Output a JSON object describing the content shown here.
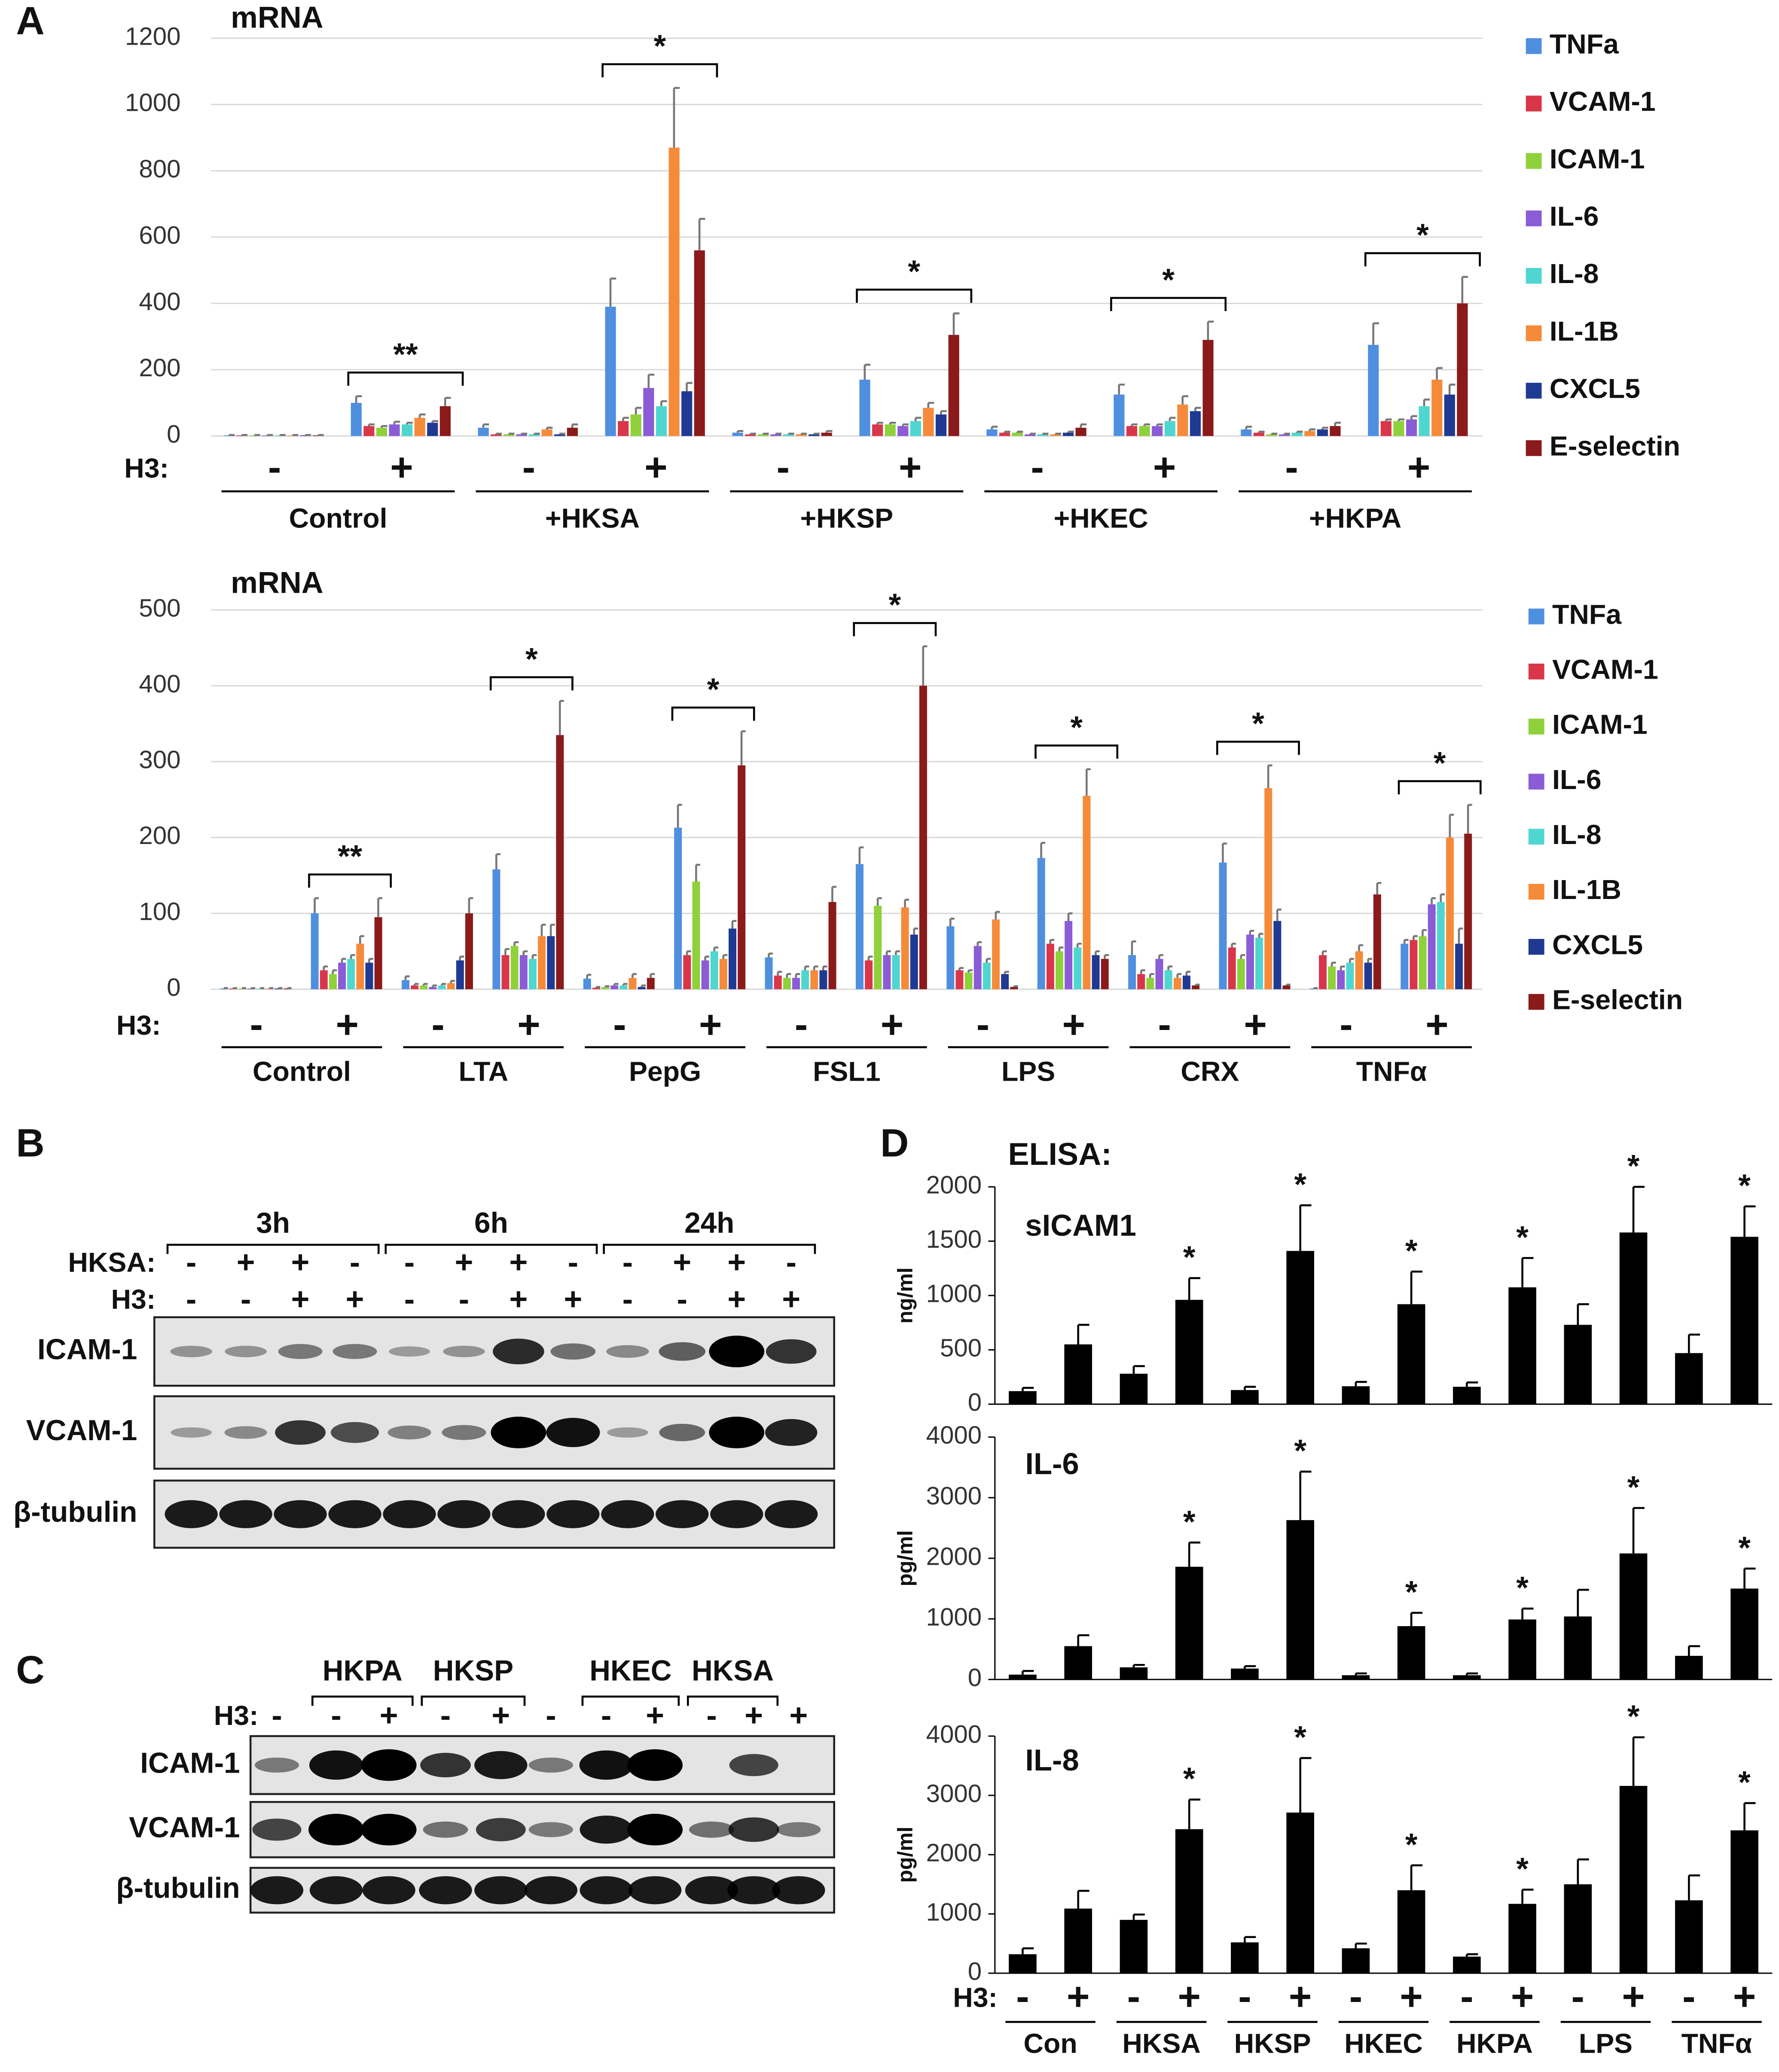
{
  "chart_data": [
    {
      "type": "bar",
      "panel": "A",
      "title": "mRNA",
      "x_label": "H3:",
      "categories": [
        "-",
        "+",
        "-",
        "+",
        "-",
        "+",
        "-",
        "+",
        "-",
        "+"
      ],
      "groups": [
        "Control",
        "+HKSA",
        "+HKSP",
        "+HKEC",
        "+HKPA"
      ],
      "significance": [
        "**",
        "*",
        "*",
        "*",
        "*"
      ],
      "ylim": [
        0,
        1200
      ],
      "yticks": [
        0,
        200,
        400,
        600,
        800,
        1000,
        1200
      ],
      "grid": true,
      "legend": "right",
      "series": [
        {
          "name": "TNFa",
          "color": "#4f8fe0",
          "values": [
            2,
            100,
            25,
            390,
            10,
            170,
            20,
            125,
            20,
            275
          ],
          "errors": [
            1,
            20,
            10,
            85,
            5,
            45,
            8,
            30,
            8,
            65
          ]
        },
        {
          "name": "VCAM-1",
          "color": "#d9364a",
          "values": [
            2,
            30,
            5,
            45,
            5,
            35,
            10,
            30,
            10,
            45
          ],
          "errors": [
            1,
            5,
            2,
            10,
            2,
            5,
            3,
            5,
            3,
            5
          ]
        },
        {
          "name": "ICAM-1",
          "color": "#8fd13a",
          "values": [
            2,
            25,
            5,
            65,
            5,
            35,
            10,
            30,
            5,
            45
          ],
          "errors": [
            1,
            5,
            2,
            20,
            2,
            5,
            3,
            5,
            2,
            5
          ]
        },
        {
          "name": "IL-6",
          "color": "#8b5cd6",
          "values": [
            2,
            35,
            5,
            145,
            5,
            30,
            5,
            30,
            5,
            50
          ],
          "errors": [
            1,
            8,
            2,
            40,
            2,
            5,
            2,
            5,
            2,
            10
          ]
        },
        {
          "name": "IL-8",
          "color": "#4fd6d0",
          "values": [
            2,
            35,
            5,
            90,
            5,
            45,
            5,
            45,
            10,
            90
          ],
          "errors": [
            1,
            5,
            2,
            15,
            2,
            10,
            2,
            10,
            3,
            20
          ]
        },
        {
          "name": "IL-1B",
          "color": "#f58b3a",
          "values": [
            2,
            55,
            20,
            870,
            5,
            85,
            5,
            95,
            15,
            170
          ],
          "errors": [
            1,
            10,
            5,
            180,
            2,
            15,
            2,
            25,
            5,
            35
          ]
        },
        {
          "name": "CXCL5",
          "color": "#1f3a93",
          "values": [
            2,
            40,
            5,
            135,
            5,
            65,
            10,
            75,
            20,
            125
          ],
          "errors": [
            1,
            5,
            2,
            25,
            2,
            10,
            3,
            10,
            5,
            30
          ]
        },
        {
          "name": "E-selectin",
          "color": "#8b1a1a",
          "values": [
            2,
            90,
            25,
            560,
            10,
            305,
            25,
            290,
            30,
            400
          ],
          "errors": [
            1,
            25,
            10,
            95,
            5,
            65,
            10,
            55,
            10,
            80
          ]
        }
      ]
    },
    {
      "type": "bar",
      "title": "mRNA",
      "x_label": "H3:",
      "categories": [
        "-",
        "+",
        "-",
        "+",
        "-",
        "+",
        "-",
        "+",
        "-",
        "+",
        "-",
        "+",
        "-",
        "+"
      ],
      "groups": [
        "Control",
        "LTA",
        "PepG",
        "FSL1",
        "LPS",
        "CRX",
        "TNFα"
      ],
      "significance": [
        "**",
        "*",
        "*",
        "*",
        "*",
        "*",
        "*"
      ],
      "ylim": [
        0,
        500
      ],
      "yticks": [
        0,
        100,
        200,
        300,
        400,
        500
      ],
      "grid": true,
      "legend": "right",
      "series": [
        {
          "name": "TNFa",
          "color": "#4f8fe0",
          "values": [
            1,
            100,
            12,
            158,
            14,
            213,
            42,
            165,
            83,
            173,
            45,
            167,
            1,
            60
          ],
          "errors": [
            0.5,
            20,
            5,
            20,
            5,
            30,
            5,
            22,
            10,
            20,
            18,
            25,
            0.5,
            5
          ]
        },
        {
          "name": "VCAM-1",
          "color": "#d9364a",
          "values": [
            1,
            25,
            5,
            45,
            2,
            45,
            18,
            38,
            25,
            60,
            20,
            55,
            45,
            65
          ],
          "errors": [
            0.5,
            5,
            2,
            8,
            1,
            5,
            5,
            5,
            3,
            5,
            5,
            5,
            5,
            5
          ]
        },
        {
          "name": "ICAM-1",
          "color": "#8fd13a",
          "values": [
            1,
            20,
            5,
            57,
            3,
            142,
            15,
            110,
            22,
            50,
            15,
            40,
            30,
            70
          ],
          "errors": [
            0.5,
            5,
            2,
            5,
            1,
            22,
            5,
            10,
            3,
            5,
            5,
            5,
            5,
            8
          ]
        },
        {
          "name": "IL-6",
          "color": "#8b5cd6",
          "values": [
            1,
            35,
            3,
            45,
            5,
            38,
            15,
            45,
            57,
            90,
            40,
            72,
            25,
            112
          ],
          "errors": [
            0.5,
            5,
            2,
            5,
            2,
            5,
            5,
            5,
            5,
            10,
            5,
            5,
            5,
            8
          ]
        },
        {
          "name": "IL-8",
          "color": "#4fd6d0",
          "values": [
            1,
            40,
            5,
            40,
            5,
            50,
            25,
            45,
            35,
            55,
            25,
            68,
            35,
            115
          ],
          "errors": [
            0.5,
            5,
            2,
            5,
            2,
            5,
            5,
            5,
            5,
            5,
            5,
            5,
            5,
            10
          ]
        },
        {
          "name": "IL-1B",
          "color": "#f58b3a",
          "values": [
            1,
            60,
            8,
            70,
            15,
            40,
            25,
            108,
            92,
            255,
            15,
            265,
            50,
            200
          ],
          "errors": [
            0.5,
            10,
            3,
            15,
            5,
            5,
            5,
            10,
            10,
            35,
            5,
            30,
            8,
            30
          ]
        },
        {
          "name": "CXCL5",
          "color": "#1f3a93",
          "values": [
            1,
            35,
            38,
            70,
            3,
            80,
            25,
            72,
            20,
            45,
            18,
            90,
            35,
            60
          ],
          "errors": [
            0.5,
            5,
            5,
            15,
            2,
            10,
            5,
            8,
            3,
            5,
            5,
            15,
            5,
            20
          ]
        },
        {
          "name": "E-selectin",
          "color": "#8b1a1a",
          "values": [
            1,
            95,
            100,
            335,
            15,
            295,
            115,
            400,
            3,
            40,
            5,
            5,
            125,
            205
          ],
          "errors": [
            0.5,
            25,
            20,
            45,
            5,
            45,
            20,
            52,
            1,
            5,
            1,
            1,
            15,
            38
          ]
        }
      ]
    },
    {
      "type": "bar",
      "panel": "D",
      "heading": "ELISA:",
      "title": "sICAM1",
      "ylabel": "ng/ml",
      "color": "#000000",
      "grid": false,
      "ylim": [
        0,
        2000
      ],
      "yticks": [
        0,
        500,
        1000,
        1500,
        2000
      ],
      "values": [
        120,
        550,
        280,
        960,
        130,
        1410,
        165,
        920,
        160,
        1075,
        730,
        1580,
        470,
        1540
      ],
      "errors": [
        30,
        180,
        70,
        200,
        30,
        420,
        40,
        300,
        40,
        270,
        190,
        420,
        170,
        280
      ],
      "significance": [
        null,
        null,
        null,
        "*",
        null,
        "*",
        null,
        "*",
        null,
        "*",
        null,
        "*",
        null,
        "*"
      ]
    },
    {
      "type": "bar",
      "title": "IL-6",
      "ylabel": "pg/ml",
      "color": "#000000",
      "grid": false,
      "ylim": [
        0,
        4000
      ],
      "yticks": [
        0,
        1000,
        2000,
        3000,
        4000
      ],
      "values": [
        80,
        550,
        200,
        1860,
        180,
        2630,
        70,
        880,
        70,
        990,
        1040,
        2080,
        390,
        1500
      ],
      "errors": [
        60,
        180,
        40,
        400,
        40,
        800,
        30,
        220,
        30,
        180,
        440,
        750,
        160,
        330
      ],
      "significance": [
        null,
        null,
        null,
        "*",
        null,
        "*",
        null,
        "*",
        null,
        "*",
        null,
        "*",
        null,
        "*"
      ]
    },
    {
      "type": "bar",
      "title": "IL-8",
      "ylabel": "pg/ml",
      "color": "#000000",
      "grid": false,
      "x_label": "H3:",
      "ylim": [
        0,
        4000
      ],
      "yticks": [
        0,
        1000,
        2000,
        3000,
        4000
      ],
      "categories": [
        "-",
        "+",
        "-",
        "+",
        "-",
        "+",
        "-",
        "+",
        "-",
        "+",
        "-",
        "+",
        "-",
        "+"
      ],
      "groups": [
        "Con",
        "HKSA",
        "HKSP",
        "HKEC",
        "HKPA",
        "LPS",
        "TNFα"
      ],
      "values": [
        320,
        1090,
        900,
        2430,
        520,
        2710,
        420,
        1400,
        280,
        1170,
        1500,
        3160,
        1230,
        2410
      ],
      "errors": [
        100,
        300,
        90,
        500,
        90,
        920,
        80,
        420,
        40,
        240,
        420,
        820,
        420,
        460
      ],
      "significance": [
        null,
        null,
        null,
        "*",
        null,
        "*",
        null,
        "*",
        null,
        "*",
        null,
        "*",
        null,
        "*"
      ]
    }
  ],
  "blots": [
    {
      "panel": "B",
      "header_groups": [
        "3h",
        "6h",
        "24h"
      ],
      "condition_rows": [
        {
          "label": "HKSA:",
          "signs": [
            "-",
            "+",
            "+",
            "-",
            "-",
            "+",
            "+",
            "-",
            "-",
            "+",
            "+",
            "-"
          ]
        },
        {
          "label": "H3:",
          "signs": [
            "-",
            "-",
            "+",
            "+",
            "-",
            "-",
            "+",
            "+",
            "-",
            "-",
            "+",
            "+"
          ]
        }
      ],
      "bands": [
        "ICAM-1",
        "VCAM-1",
        "β-tubulin"
      ]
    },
    {
      "panel": "C",
      "header_groups": [
        "HKPA",
        "HKSP",
        "HKEC",
        "HKSA"
      ],
      "condition_rows": [
        {
          "label": "H3:",
          "signs": [
            "-",
            "-",
            "+",
            "-",
            "+",
            "-",
            "-",
            "+",
            "-",
            "+",
            "+"
          ]
        }
      ],
      "bands": [
        "ICAM-1",
        "VCAM-1",
        "β-tubulin"
      ]
    }
  ]
}
